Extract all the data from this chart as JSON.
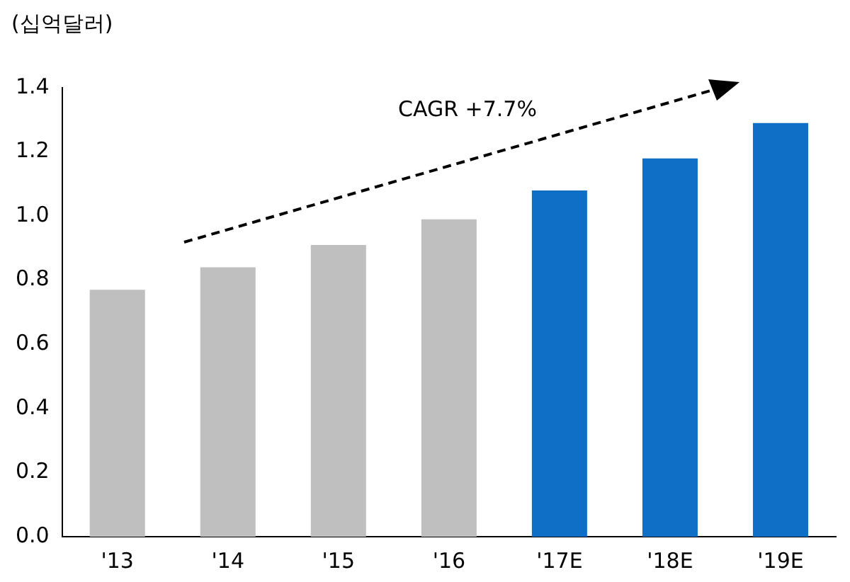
{
  "chart_data": {
    "type": "bar",
    "ylabel": "(십억달러)",
    "categories": [
      "'13",
      "'14",
      "'15",
      "'16",
      "'17E",
      "'18E",
      "'19E"
    ],
    "values": [
      0.77,
      0.84,
      0.91,
      0.99,
      1.08,
      1.18,
      1.29
    ],
    "colors": [
      "#bfbfbf",
      "#bfbfbf",
      "#bfbfbf",
      "#bfbfbf",
      "#0f6fc6",
      "#0f6fc6",
      "#0f6fc6"
    ],
    "ylim": [
      0,
      1.4
    ],
    "yticks": [
      {
        "value": 0,
        "label": "0.0"
      },
      {
        "value": 0.2,
        "label": "0.2"
      },
      {
        "value": 0.4,
        "label": "0.4"
      },
      {
        "value": 0.6,
        "label": "0.6"
      },
      {
        "value": 0.8,
        "label": "0.8"
      },
      {
        "value": 1,
        "label": "1.0"
      },
      {
        "value": 1.2,
        "label": "1.2"
      },
      {
        "value": 1.4,
        "label": "1.4"
      }
    ],
    "grid": false,
    "legend": false,
    "annotations": [
      "CAGR +7.7%"
    ]
  }
}
